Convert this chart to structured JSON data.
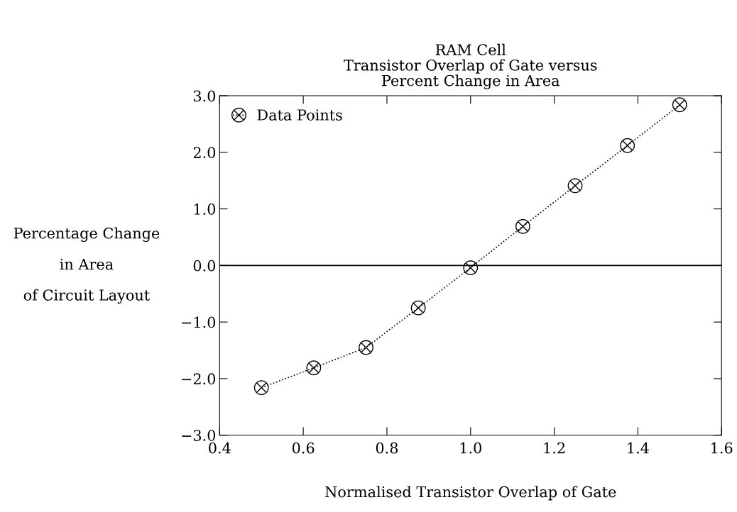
{
  "chart_data": {
    "type": "line",
    "title": "RAM Cell\nTransistor Overlap of Gate versus\nPercent Change in Area",
    "xlabel": "Normalised Transistor Overlap of Gate",
    "ylabel": "Percentage Change\n\nin Area\n\nof Circuit Layout",
    "x": [
      0.5,
      0.625,
      0.75,
      0.875,
      1.0,
      1.125,
      1.25,
      1.375,
      1.5
    ],
    "series": [
      {
        "name": "Data Points",
        "color": "#000000",
        "values": [
          -2.16,
          -1.81,
          -1.45,
          -0.75,
          -0.04,
          0.69,
          1.41,
          2.12,
          2.84
        ]
      }
    ],
    "marker": "cross",
    "line_style": "dotted",
    "legend": "top left",
    "grid": false,
    "xlim": [
      0.4,
      1.6
    ],
    "xticks": [
      0.4,
      0.6,
      0.8,
      {
        "value": 1,
        "label": "1.0"
      },
      1.2,
      1.4,
      1.6
    ],
    "ylim": [
      -3.0,
      3.0
    ],
    "yticks": [
      {
        "value": -3,
        "label": "−3.0"
      },
      {
        "value": -2,
        "label": "−2.0"
      },
      {
        "value": -1,
        "label": "−1.0"
      },
      {
        "value": 0,
        "label": "0.0"
      },
      {
        "value": 1,
        "label": "1.0"
      },
      {
        "value": 2,
        "label": "2.0"
      },
      {
        "value": 3,
        "label": "3.0"
      }
    ],
    "ref_lines": [
      {
        "axis": "y",
        "value": 0,
        "color": "#000000",
        "line_style": "solid"
      }
    ]
  }
}
